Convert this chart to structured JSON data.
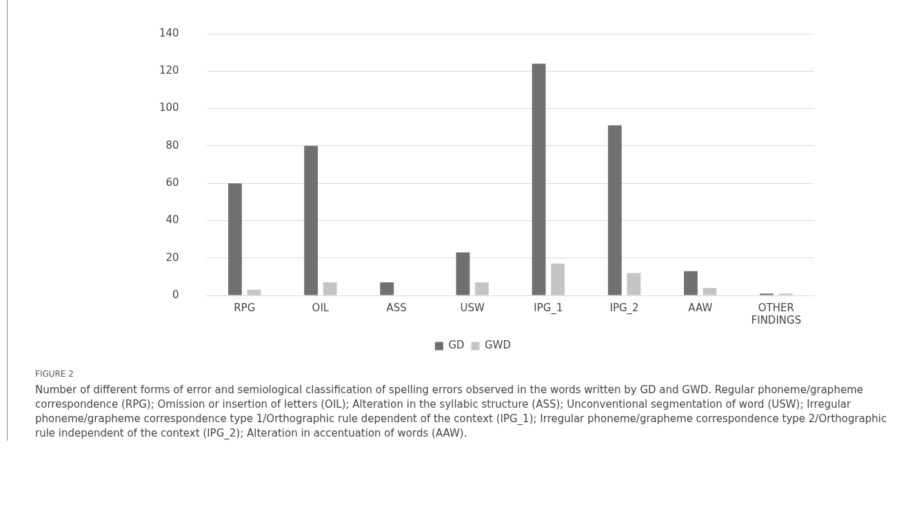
{
  "chart_data": {
    "type": "bar",
    "title": "FIGURE 2",
    "categories": [
      "RPG",
      "OIL",
      "ASS",
      "USW",
      "IPG_1",
      "IPG_2",
      "AAW",
      "OTHER FINDINGS"
    ],
    "series": [
      {
        "name": "GD",
        "color": "#707070",
        "values": [
          60,
          80,
          7,
          23,
          124,
          91,
          13,
          1
        ]
      },
      {
        "name": "GWD",
        "color": "#c4c4c4",
        "values": [
          3,
          7,
          0,
          7,
          17,
          12,
          4,
          1
        ]
      }
    ],
    "ylim": [
      0,
      140
    ],
    "yticks": [
      0,
      20,
      40,
      60,
      80,
      100,
      120,
      140
    ],
    "grid": "y",
    "legend": "bottom",
    "annotations": [
      "Number of different forms of error and semiological classification of spelling errors observed in the words written by GD and GWD. Regular phoneme/grapheme correspondence (RPG); Omission or insertion of letters (OIL); Alteration in the syllabic structure (ASS); Unconventional segmentation of word (USW); Irregular phoneme/grapheme correspondence type 1/Orthographic rule dependent of the context (IPG_1); Irregular phoneme/grapheme correspondence type 2/Orthographic rule independent of the context (IPG_2); Alteration in accentuation of words (AAW)."
    ]
  }
}
